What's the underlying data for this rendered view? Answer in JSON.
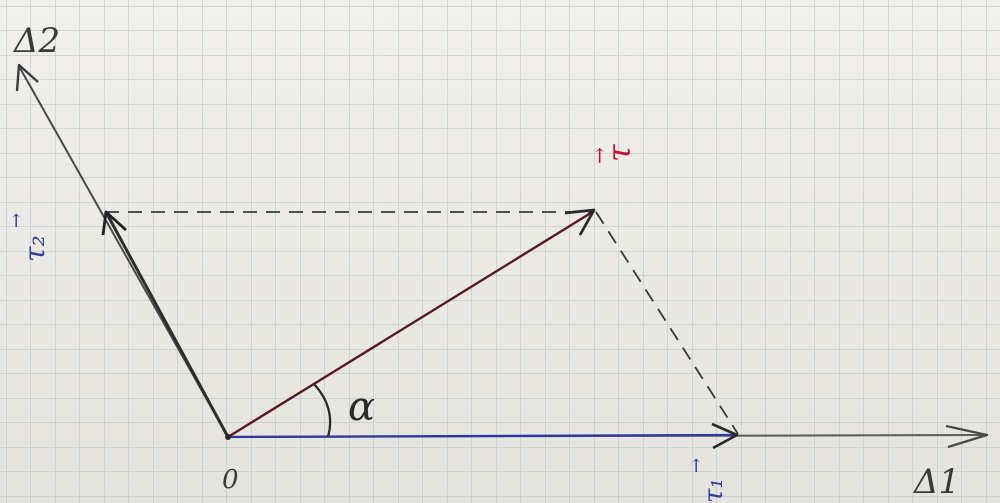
{
  "labels": {
    "axis_1": "Δ1",
    "axis_2": "Δ2",
    "origin": "0",
    "angle": "α",
    "vector_total": "τ",
    "vector_total_arrow": "→",
    "vector_comp_1": "τ₁",
    "vector_comp_1_arrow": "→",
    "vector_comp_2": "τ₂",
    "vector_comp_2_arrow": "→"
  },
  "colors": {
    "paper": "#ecebe7",
    "grid": "#b9bcc4",
    "pencil": "#3a3a3a",
    "red_ink": "#c8102e",
    "blue_ink": "#2a3aa0",
    "resultant": "#5a1a22"
  }
}
